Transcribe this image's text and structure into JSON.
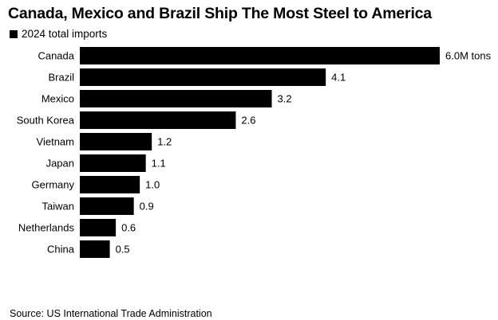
{
  "chart_data": {
    "type": "bar",
    "orientation": "horizontal",
    "title": "Canada, Mexico and Brazil Ship The Most Steel to America",
    "legend": "2024 total imports",
    "categories": [
      "Canada",
      "Brazil",
      "Mexico",
      "South Korea",
      "Vietnam",
      "Japan",
      "Germany",
      "Taiwan",
      "Netherlands",
      "China"
    ],
    "values": [
      6.0,
      4.1,
      3.2,
      2.6,
      1.2,
      1.1,
      1.0,
      0.9,
      0.6,
      0.5
    ],
    "value_labels": [
      "6.0M tons",
      "4.1",
      "3.2",
      "2.6",
      "1.2",
      "1.1",
      "1.0",
      "0.9",
      "0.6",
      "0.5"
    ],
    "unit": "M tons",
    "xlim": [
      0,
      6.0
    ],
    "grid": false,
    "bar_color": "#000000",
    "source": "Source: US International Trade Administration"
  }
}
